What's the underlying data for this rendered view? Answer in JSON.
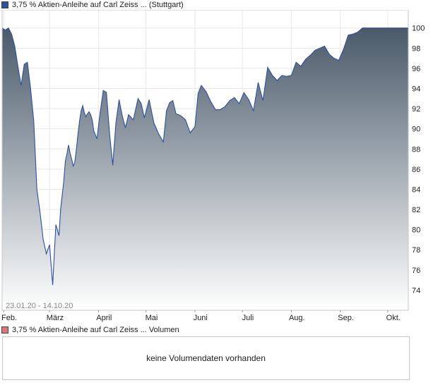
{
  "legend": {
    "price_label": "3,75 % Aktien-Anleihe auf Carl Zeiss ... (Stuttgart)",
    "volume_label": "3,75 % Aktien-Anleihe auf Carl Zeiss ... Volumen"
  },
  "colors": {
    "line": "#2d4fa6",
    "fill_top": "#4a5a6a",
    "fill_bottom": "#ffffff",
    "grid": "#e8e8e8",
    "volume_swatch": "#d9797a"
  },
  "volume": {
    "message": "keine Volumendaten vorhanden"
  },
  "chart_data": {
    "type": "area",
    "date_range_label": "23.01.20 - 14.10.20",
    "x_tick_labels": [
      "Feb.",
      "März",
      "April",
      "Mai",
      "Juni",
      "Juli",
      "Aug.",
      "Sep.",
      "Okt."
    ],
    "x_tick_dates": [
      "2020-02-01",
      "2020-03-01",
      "2020-04-01",
      "2020-05-01",
      "2020-06-01",
      "2020-07-01",
      "2020-08-01",
      "2020-09-01",
      "2020-10-01"
    ],
    "y_ticks": [
      74,
      76,
      78,
      80,
      82,
      84,
      86,
      88,
      90,
      92,
      94,
      96,
      98,
      100
    ],
    "ylim": [
      72.0,
      101.8
    ],
    "xlim": [
      "2020-01-31",
      "2020-10-14"
    ],
    "grid": true,
    "y_axis_side": "right",
    "series": [
      {
        "x": [
          "2020-01-31",
          "2020-02-02",
          "2020-02-04",
          "2020-02-06",
          "2020-02-08",
          "2020-02-10",
          "2020-02-12",
          "2020-02-14",
          "2020-02-16",
          "2020-02-18",
          "2020-02-20",
          "2020-02-22",
          "2020-02-24",
          "2020-02-26",
          "2020-02-28",
          "2020-03-01",
          "2020-03-03",
          "2020-03-05",
          "2020-03-07",
          "2020-03-08",
          "2020-03-10",
          "2020-03-11",
          "2020-03-12",
          "2020-03-13",
          "2020-03-14",
          "2020-03-15",
          "2020-03-16",
          "2020-03-17",
          "2020-03-18",
          "2020-03-19",
          "2020-03-20",
          "2020-03-21",
          "2020-03-22",
          "2020-03-23",
          "2020-03-24",
          "2020-03-25",
          "2020-03-26",
          "2020-03-27",
          "2020-03-28",
          "2020-03-29",
          "2020-03-31",
          "2020-04-02",
          "2020-04-04",
          "2020-04-06",
          "2020-04-08",
          "2020-04-10",
          "2020-04-12",
          "2020-04-14",
          "2020-04-16",
          "2020-04-18",
          "2020-04-20",
          "2020-04-23",
          "2020-04-26",
          "2020-04-28",
          "2020-04-30",
          "2020-05-03",
          "2020-05-06",
          "2020-05-09",
          "2020-05-12",
          "2020-05-14",
          "2020-05-16",
          "2020-05-18",
          "2020-05-20",
          "2020-05-23",
          "2020-05-26",
          "2020-05-29",
          "2020-06-01",
          "2020-06-03",
          "2020-06-05",
          "2020-06-08",
          "2020-06-11",
          "2020-06-14",
          "2020-06-17",
          "2020-06-20",
          "2020-06-23",
          "2020-06-26",
          "2020-06-29",
          "2020-07-02",
          "2020-07-05",
          "2020-07-08",
          "2020-07-11",
          "2020-07-14",
          "2020-07-17",
          "2020-07-20",
          "2020-07-23",
          "2020-07-26",
          "2020-07-29",
          "2020-08-01",
          "2020-08-04",
          "2020-08-07",
          "2020-08-10",
          "2020-08-13",
          "2020-08-16",
          "2020-08-19",
          "2020-08-22",
          "2020-08-25",
          "2020-08-28",
          "2020-08-31",
          "2020-09-03",
          "2020-09-06",
          "2020-09-09",
          "2020-09-12",
          "2020-09-15",
          "2020-09-18",
          "2020-09-21",
          "2020-09-24",
          "2020-09-27",
          "2020-09-30",
          "2020-10-03",
          "2020-10-06",
          "2020-10-09",
          "2020-10-12",
          "2020-10-14"
        ],
        "y": [
          100.0,
          99.8,
          100.0,
          99.4,
          98.2,
          96.2,
          94.3,
          96.4,
          96.6,
          94.0,
          90.8,
          84.0,
          81.7,
          79.0,
          77.6,
          78.5,
          74.5,
          80.5,
          79.4,
          82.0,
          84.8,
          86.8,
          87.5,
          88.4,
          87.6,
          87.0,
          86.3,
          86.7,
          88.0,
          89.5,
          90.8,
          91.8,
          92.3,
          91.6,
          91.2,
          91.5,
          91.7,
          91.4,
          90.9,
          89.8,
          89.0,
          91.6,
          93.8,
          93.6,
          89.5,
          86.4,
          90.6,
          92.9,
          91.3,
          90.1,
          91.4,
          90.9,
          93.0,
          92.5,
          91.1,
          92.9,
          90.6,
          89.5,
          88.7,
          91.8,
          92.6,
          92.8,
          91.5,
          91.3,
          90.9,
          89.6,
          90.2,
          93.5,
          94.3,
          93.7,
          92.7,
          91.9,
          91.9,
          92.2,
          92.8,
          93.1,
          92.5,
          93.6,
          92.9,
          91.8,
          94.6,
          92.8,
          96.1,
          95.3,
          94.8,
          95.3,
          95.2,
          95.3,
          96.6,
          96.2,
          96.9,
          97.3,
          97.8,
          98.0,
          98.2,
          97.4,
          97.0,
          96.8,
          97.9,
          99.3,
          99.4,
          99.6,
          100.0,
          100.0,
          100.0,
          100.0,
          100.0,
          100.0,
          100.0,
          100.0,
          100.0,
          100.0,
          100.0
        ]
      }
    ]
  }
}
